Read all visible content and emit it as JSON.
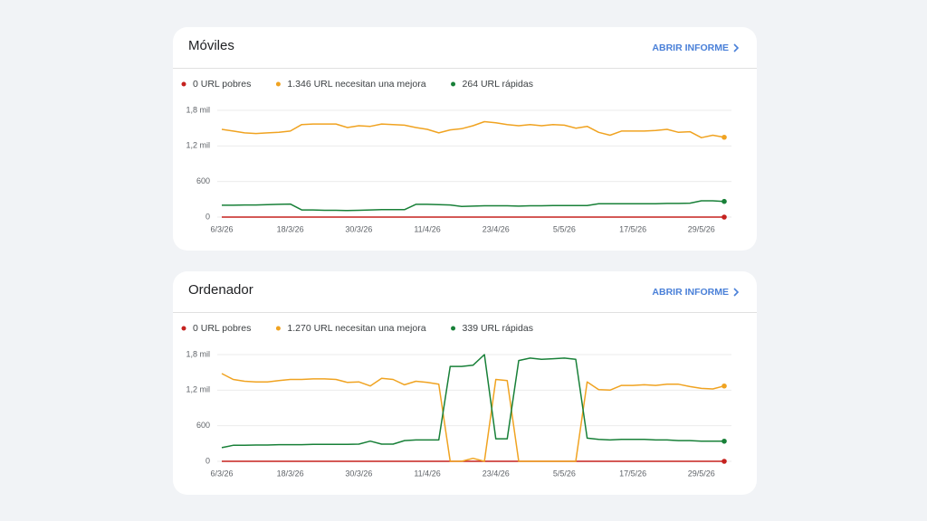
{
  "chart_data": [
    {
      "type": "line",
      "title": "Móviles",
      "link_label": "ABRIR INFORME",
      "x": [
        "2026-03-06",
        "2026-03-08",
        "2026-03-10",
        "2026-03-12",
        "2026-03-14",
        "2026-03-16",
        "2026-03-18",
        "2026-03-20",
        "2026-03-22",
        "2026-03-24",
        "2026-03-26",
        "2026-03-28",
        "2026-03-30",
        "2026-04-01",
        "2026-04-03",
        "2026-04-05",
        "2026-04-07",
        "2026-04-09",
        "2026-04-11",
        "2026-04-13",
        "2026-04-15",
        "2026-04-17",
        "2026-04-19",
        "2026-04-21",
        "2026-04-23",
        "2026-04-25",
        "2026-04-27",
        "2026-04-29",
        "2026-05-01",
        "2026-05-03",
        "2026-05-05",
        "2026-05-07",
        "2026-05-09",
        "2026-05-11",
        "2026-05-13",
        "2026-05-15",
        "2026-05-17",
        "2026-05-19",
        "2026-05-21",
        "2026-05-23",
        "2026-05-25",
        "2026-05-27",
        "2026-05-29",
        "2026-05-31",
        "2026-06-02"
      ],
      "xlim": [
        "2026-03-06",
        "2026-06-02"
      ],
      "xticks": [
        {
          "value": "2026-03-06",
          "label": "6/3/26"
        },
        {
          "value": "2026-03-18",
          "label": "18/3/26"
        },
        {
          "value": "2026-03-30",
          "label": "30/3/26"
        },
        {
          "value": "2026-04-11",
          "label": "11/4/26"
        },
        {
          "value": "2026-04-23",
          "label": "23/4/26"
        },
        {
          "value": "2026-05-05",
          "label": "5/5/26"
        },
        {
          "value": "2026-05-17",
          "label": "17/5/26"
        },
        {
          "value": "2026-05-29",
          "label": "29/5/26"
        }
      ],
      "ylim": [
        0,
        1800
      ],
      "yticks": [
        0,
        600,
        {
          "value": 1200,
          "label": "1,2 mil"
        },
        {
          "value": 1800,
          "label": "1,8 mil"
        }
      ],
      "grid": true,
      "series": [
        {
          "name": "0 URL pobres",
          "color": "#c5221f",
          "values": [
            0,
            0,
            0,
            0,
            0,
            0,
            0,
            0,
            0,
            0,
            0,
            0,
            0,
            0,
            0,
            0,
            0,
            0,
            0,
            0,
            0,
            0,
            0,
            0,
            0,
            0,
            0,
            0,
            0,
            0,
            0,
            0,
            0,
            0,
            0,
            0,
            0,
            0,
            0,
            0,
            0,
            0,
            0,
            0,
            0
          ]
        },
        {
          "name": "1.346 URL necesitan una mejora",
          "color": "#f0a321",
          "values": [
            1480,
            1450,
            1420,
            1410,
            1420,
            1430,
            1450,
            1560,
            1570,
            1570,
            1570,
            1510,
            1540,
            1530,
            1570,
            1560,
            1550,
            1510,
            1480,
            1420,
            1470,
            1490,
            1540,
            1610,
            1590,
            1560,
            1540,
            1560,
            1540,
            1560,
            1550,
            1500,
            1530,
            1430,
            1380,
            1450,
            1450,
            1450,
            1460,
            1480,
            1430,
            1440,
            1340,
            1380,
            1346
          ]
        },
        {
          "name": "264 URL rápidas",
          "color": "#188038",
          "values": [
            200,
            200,
            205,
            205,
            210,
            215,
            220,
            120,
            120,
            115,
            115,
            110,
            115,
            120,
            125,
            125,
            125,
            215,
            215,
            210,
            205,
            180,
            185,
            190,
            190,
            190,
            185,
            190,
            190,
            195,
            195,
            195,
            195,
            225,
            225,
            225,
            225,
            225,
            225,
            230,
            230,
            235,
            275,
            275,
            264
          ]
        }
      ]
    },
    {
      "type": "line",
      "title": "Ordenador",
      "link_label": "ABRIR INFORME",
      "x": [
        "2026-03-06",
        "2026-03-08",
        "2026-03-10",
        "2026-03-12",
        "2026-03-14",
        "2026-03-16",
        "2026-03-18",
        "2026-03-20",
        "2026-03-22",
        "2026-03-24",
        "2026-03-26",
        "2026-03-28",
        "2026-03-30",
        "2026-04-01",
        "2026-04-03",
        "2026-04-05",
        "2026-04-07",
        "2026-04-09",
        "2026-04-11",
        "2026-04-13",
        "2026-04-15",
        "2026-04-17",
        "2026-04-19",
        "2026-04-21",
        "2026-04-23",
        "2026-04-25",
        "2026-04-27",
        "2026-04-29",
        "2026-05-01",
        "2026-05-03",
        "2026-05-05",
        "2026-05-07",
        "2026-05-09",
        "2026-05-11",
        "2026-05-13",
        "2026-05-15",
        "2026-05-17",
        "2026-05-19",
        "2026-05-21",
        "2026-05-23",
        "2026-05-25",
        "2026-05-27",
        "2026-05-29",
        "2026-05-31",
        "2026-06-02"
      ],
      "xlim": [
        "2026-03-06",
        "2026-06-02"
      ],
      "xticks": [
        {
          "value": "2026-03-06",
          "label": "6/3/26"
        },
        {
          "value": "2026-03-18",
          "label": "18/3/26"
        },
        {
          "value": "2026-03-30",
          "label": "30/3/26"
        },
        {
          "value": "2026-04-11",
          "label": "11/4/26"
        },
        {
          "value": "2026-04-23",
          "label": "23/4/26"
        },
        {
          "value": "2026-05-05",
          "label": "5/5/26"
        },
        {
          "value": "2026-05-17",
          "label": "17/5/26"
        },
        {
          "value": "2026-05-29",
          "label": "29/5/26"
        }
      ],
      "ylim": [
        0,
        1800
      ],
      "yticks": [
        0,
        600,
        {
          "value": 1200,
          "label": "1,2 mil"
        },
        {
          "value": 1800,
          "label": "1,8 mil"
        }
      ],
      "grid": true,
      "series": [
        {
          "name": "0 URL pobres",
          "color": "#c5221f",
          "values": [
            0,
            0,
            0,
            0,
            0,
            0,
            0,
            0,
            0,
            0,
            0,
            0,
            0,
            0,
            0,
            0,
            0,
            0,
            0,
            0,
            0,
            0,
            0,
            0,
            0,
            0,
            0,
            0,
            0,
            0,
            0,
            0,
            0,
            0,
            0,
            0,
            0,
            0,
            0,
            0,
            0,
            0,
            0,
            0,
            0
          ]
        },
        {
          "name": "1.270 URL necesitan una mejora",
          "color": "#f0a321",
          "values": [
            1480,
            1380,
            1350,
            1340,
            1340,
            1360,
            1380,
            1380,
            1390,
            1390,
            1380,
            1330,
            1340,
            1270,
            1400,
            1380,
            1290,
            1350,
            1330,
            1300,
            0,
            0,
            50,
            0,
            1380,
            1360,
            0,
            0,
            0,
            0,
            0,
            0,
            1340,
            1210,
            1200,
            1280,
            1280,
            1290,
            1280,
            1300,
            1300,
            1260,
            1230,
            1220,
            1270
          ]
        },
        {
          "name": "339 URL rápidas",
          "color": "#188038",
          "values": [
            230,
            270,
            270,
            275,
            275,
            280,
            280,
            280,
            285,
            285,
            285,
            285,
            290,
            340,
            290,
            290,
            350,
            360,
            360,
            360,
            1600,
            1600,
            1620,
            1800,
            380,
            380,
            1700,
            1740,
            1720,
            1730,
            1740,
            1720,
            390,
            370,
            360,
            370,
            370,
            370,
            360,
            360,
            350,
            350,
            340,
            340,
            339
          ]
        }
      ]
    }
  ]
}
